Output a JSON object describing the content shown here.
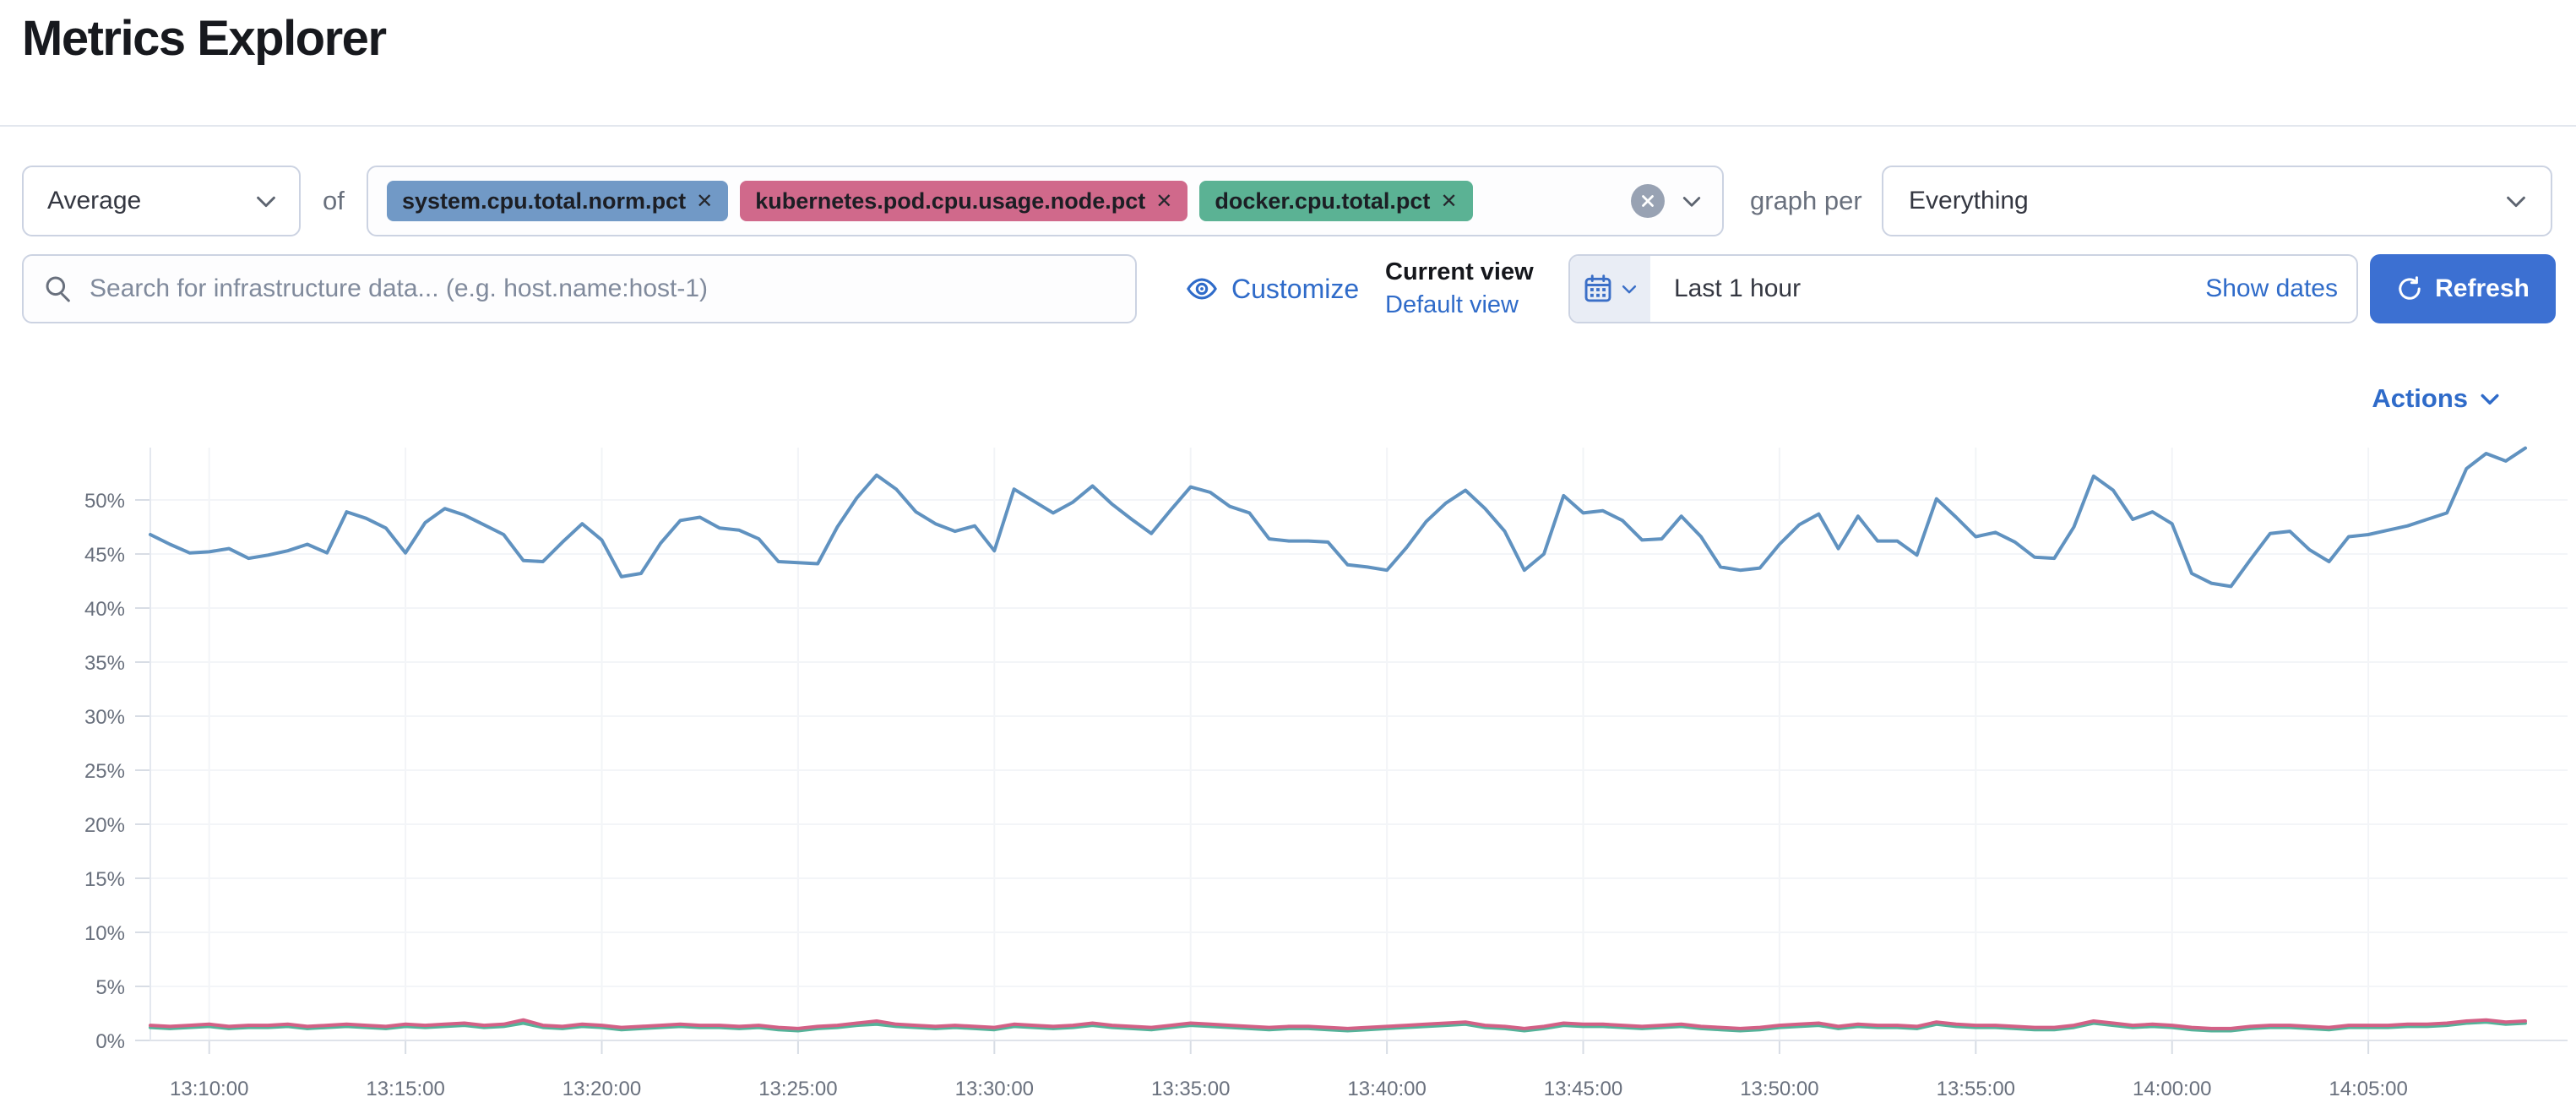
{
  "page": {
    "title": "Metrics Explorer"
  },
  "toolbar": {
    "aggregation": {
      "value": "Average"
    },
    "of_label": "of",
    "metrics": [
      {
        "label": "system.cpu.total.norm.pct",
        "remove_label": "✕",
        "color": "#6092C0"
      },
      {
        "label": "kubernetes.pod.cpu.usage.node.pct",
        "remove_label": "✕",
        "color": "#D36086"
      },
      {
        "label": "docker.cpu.total.pct",
        "remove_label": "✕",
        "color": "#54B399"
      }
    ],
    "graph_per_label": "graph per",
    "graph_per": {
      "value": "Everything"
    }
  },
  "searchbar": {
    "value": "",
    "placeholder": "Search for infrastructure data... (e.g. host.name:host-1)"
  },
  "view_controls": {
    "customize_label": "Customize",
    "current_view_label": "Current view",
    "default_view_label": "Default view"
  },
  "datepicker": {
    "range_label": "Last 1 hour",
    "show_dates_label": "Show dates",
    "refresh_label": "Refresh"
  },
  "actions_label": "Actions",
  "colors": {
    "link_blue": "#2f6bc9",
    "primary_button": "#3c70d2",
    "axis_text": "#69707d",
    "series_blue": "#6092C0",
    "series_rose": "#D36086",
    "series_green": "#54B399"
  },
  "chart_data": {
    "type": "line",
    "grid": true,
    "legend": false,
    "ylabel": "",
    "xlabel": "",
    "ylim": [
      0,
      55
    ],
    "y_tick_labels": [
      "0%",
      "5%",
      "10%",
      "15%",
      "20%",
      "25%",
      "30%",
      "35%",
      "40%",
      "45%",
      "50%"
    ],
    "x_tick_labels": [
      "13:10:00",
      "13:15:00",
      "13:20:00",
      "13:25:00",
      "13:30:00",
      "13:35:00",
      "13:40:00",
      "13:45:00",
      "13:50:00",
      "13:55:00",
      "14:00:00",
      "14:05:00"
    ],
    "x_start": "13:08:30",
    "x_interval_seconds": 30,
    "series": [
      {
        "name": "system.cpu.total.norm.pct",
        "color": "#6092C0",
        "values": [
          46.8,
          45.9,
          45.1,
          45.2,
          45.5,
          44.6,
          44.9,
          45.3,
          45.9,
          45.1,
          48.9,
          48.3,
          47.4,
          45.1,
          47.9,
          49.2,
          48.6,
          47.7,
          46.8,
          44.4,
          44.3,
          46.1,
          47.8,
          46.3,
          42.9,
          43.2,
          46.0,
          48.1,
          48.4,
          47.4,
          47.2,
          46.4,
          44.3,
          44.2,
          44.1,
          47.5,
          50.2,
          52.3,
          51.0,
          48.9,
          47.8,
          47.1,
          47.6,
          45.3,
          51.0,
          49.9,
          48.8,
          49.8,
          51.3,
          49.6,
          48.2,
          46.9,
          49.1,
          51.2,
          50.7,
          49.4,
          48.8,
          46.4,
          46.2,
          46.2,
          46.1,
          44.0,
          43.8,
          43.5,
          45.6,
          48.0,
          49.7,
          50.9,
          49.2,
          47.1,
          43.5,
          45.0,
          50.4,
          48.8,
          49.0,
          48.1,
          46.3,
          46.4,
          48.5,
          46.6,
          43.8,
          43.5,
          43.7,
          45.9,
          47.7,
          48.7,
          45.5,
          48.5,
          46.2,
          46.2,
          44.9,
          50.1,
          48.4,
          46.6,
          47.0,
          46.1,
          44.7,
          44.6,
          47.5,
          52.2,
          50.9,
          48.2,
          48.9,
          47.8,
          43.2,
          42.3,
          42.0,
          44.5,
          46.9,
          47.1,
          45.4,
          44.3,
          46.6,
          46.8,
          47.2,
          47.6,
          48.2,
          48.8,
          52.9,
          54.3,
          53.6,
          54.8
        ]
      },
      {
        "name": "kubernetes.pod.cpu.usage.node.pct",
        "color": "#D36086",
        "values": [
          1.4,
          1.3,
          1.4,
          1.5,
          1.3,
          1.4,
          1.4,
          1.5,
          1.3,
          1.4,
          1.5,
          1.4,
          1.3,
          1.5,
          1.4,
          1.5,
          1.6,
          1.4,
          1.5,
          1.9,
          1.4,
          1.3,
          1.5,
          1.4,
          1.2,
          1.3,
          1.4,
          1.5,
          1.4,
          1.4,
          1.3,
          1.4,
          1.2,
          1.1,
          1.3,
          1.4,
          1.6,
          1.8,
          1.5,
          1.4,
          1.3,
          1.4,
          1.3,
          1.2,
          1.5,
          1.4,
          1.3,
          1.4,
          1.6,
          1.4,
          1.3,
          1.2,
          1.4,
          1.6,
          1.5,
          1.4,
          1.3,
          1.2,
          1.3,
          1.3,
          1.2,
          1.1,
          1.2,
          1.3,
          1.4,
          1.5,
          1.6,
          1.7,
          1.4,
          1.3,
          1.1,
          1.3,
          1.6,
          1.5,
          1.5,
          1.4,
          1.3,
          1.4,
          1.5,
          1.3,
          1.2,
          1.1,
          1.2,
          1.4,
          1.5,
          1.6,
          1.3,
          1.5,
          1.4,
          1.4,
          1.3,
          1.7,
          1.5,
          1.4,
          1.4,
          1.3,
          1.2,
          1.2,
          1.4,
          1.8,
          1.6,
          1.4,
          1.5,
          1.4,
          1.2,
          1.1,
          1.1,
          1.3,
          1.4,
          1.4,
          1.3,
          1.2,
          1.4,
          1.4,
          1.4,
          1.5,
          1.5,
          1.6,
          1.8,
          1.9,
          1.7,
          1.8
        ]
      },
      {
        "name": "docker.cpu.total.pct",
        "color": "#54B399",
        "values": [
          1.2,
          1.1,
          1.2,
          1.3,
          1.1,
          1.2,
          1.2,
          1.3,
          1.1,
          1.2,
          1.3,
          1.2,
          1.1,
          1.3,
          1.2,
          1.3,
          1.4,
          1.2,
          1.3,
          1.6,
          1.2,
          1.1,
          1.3,
          1.2,
          1.0,
          1.1,
          1.2,
          1.3,
          1.2,
          1.2,
          1.1,
          1.2,
          1.0,
          0.9,
          1.1,
          1.2,
          1.4,
          1.5,
          1.3,
          1.2,
          1.1,
          1.2,
          1.1,
          1.0,
          1.3,
          1.2,
          1.1,
          1.2,
          1.4,
          1.2,
          1.1,
          1.0,
          1.2,
          1.4,
          1.3,
          1.2,
          1.1,
          1.0,
          1.1,
          1.1,
          1.0,
          0.9,
          1.0,
          1.1,
          1.2,
          1.3,
          1.4,
          1.5,
          1.2,
          1.1,
          0.9,
          1.1,
          1.4,
          1.3,
          1.3,
          1.2,
          1.1,
          1.2,
          1.3,
          1.1,
          1.0,
          0.9,
          1.0,
          1.2,
          1.3,
          1.4,
          1.1,
          1.3,
          1.2,
          1.2,
          1.1,
          1.5,
          1.3,
          1.2,
          1.2,
          1.1,
          1.0,
          1.0,
          1.2,
          1.6,
          1.4,
          1.2,
          1.3,
          1.2,
          1.0,
          0.9,
          0.9,
          1.1,
          1.2,
          1.2,
          1.1,
          1.0,
          1.2,
          1.2,
          1.2,
          1.3,
          1.3,
          1.4,
          1.6,
          1.7,
          1.5,
          1.6
        ]
      }
    ]
  }
}
